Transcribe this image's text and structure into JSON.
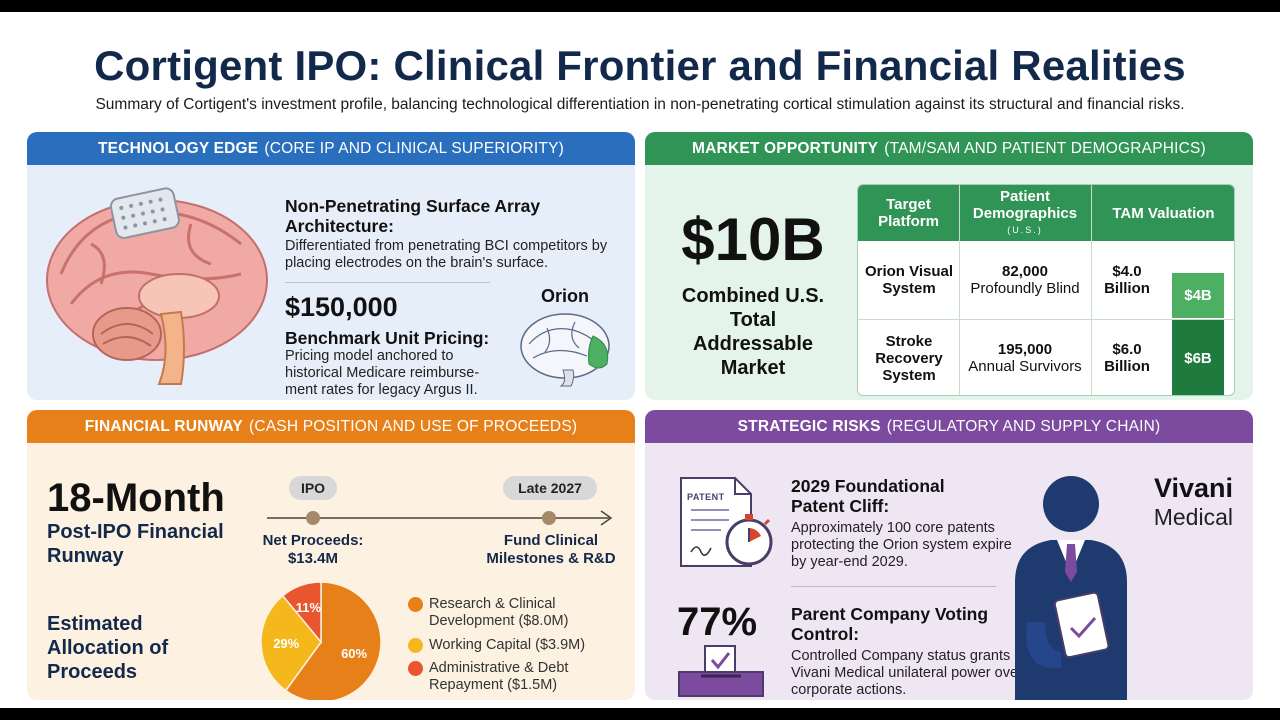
{
  "title": "Cortigent IPO: Clinical Frontier and Financial Realities",
  "subtitle": "Summary of Cortigent's investment profile, balancing technological differentiation in non-penetrating cortical stimulation against its structural and financial risks.",
  "colors": {
    "navy": "#13294b",
    "blue": "#2a6fbe",
    "green": "#2f9456",
    "orange": "#e8801a",
    "purple": "#7c4a9e"
  },
  "tech": {
    "heading_bold": "TECHNOLOGY EDGE",
    "heading_rest": "(CORE IP AND CLINICAL SUPERIORITY)",
    "array_title": "Non-Penetrating Surface Array Architecture:",
    "array_body": "Differentiated from penetrating BCI competitors by placing electrodes on the brain's surface.",
    "price": "$150,000",
    "price_title": "Benchmark Unit Pricing:",
    "price_body": "Pricing model anchored to historical Medicare reimburse-ment rates for legacy Argus II.",
    "orion_label": "Orion"
  },
  "market": {
    "heading_bold": "MARKET OPPORTUNITY",
    "heading_rest": "(TAM/SAM AND PATIENT DEMOGRAPHICS)",
    "big_value": "$10B",
    "big_label": "Combined U.S. Total Addressable Market",
    "table": {
      "headers": [
        "Target Platform",
        "Patient Demographics",
        "TAM Valuation"
      ],
      "demographics_sub": "(U.S.)",
      "rows": [
        {
          "platform": "Orion Visual System",
          "count": "82,000",
          "group": "Profoundly Blind",
          "tam": "$4.0 Billion",
          "bar": "$4B",
          "tam_value": 4.0
        },
        {
          "platform": "Stroke Recovery System",
          "count": "195,000",
          "group": "Annual Survivors",
          "tam": "$6.0 Billion",
          "bar": "$6B",
          "tam_value": 6.0
        }
      ]
    }
  },
  "fin": {
    "heading_bold": "FINANCIAL RUNWAY",
    "heading_rest": "(CASH POSITION AND USE OF PROCEEDS)",
    "runway_value": "18-Month",
    "runway_label": "Post-IPO Financial Runway",
    "timeline": {
      "start_pill": "IPO",
      "end_pill": "Late 2027",
      "start_label": "Net Proceeds: $13.4M",
      "end_label": "Fund Clinical Milestones & R&D"
    },
    "allocation_label": "Estimated Allocation of Proceeds",
    "pie": [
      {
        "name": "Research & Clinical Development ($8.0M)",
        "percent": 60,
        "label": "60%",
        "color": "#e8801a"
      },
      {
        "name": "Working Capital ($3.9M)",
        "percent": 29,
        "label": "29%",
        "color": "#f4b81c"
      },
      {
        "name": "Administrative & Debt Repayment ($1.5M)",
        "percent": 11,
        "label": "11%",
        "color": "#e8552e"
      }
    ]
  },
  "risk": {
    "heading_bold": "STRATEGIC RISKS",
    "heading_rest": "(REGULATORY AND SUPPLY CHAIN)",
    "patent_doc_label": "PATENT",
    "patent_title": "2029 Foundational Patent Cliff:",
    "patent_body": "Approximately 100 core patents protecting the Orion system expire by year-end 2029.",
    "vote_value": "77%",
    "vote_title": "Parent Company Voting Control:",
    "vote_body": "Controlled Company status grants Vivani Medical unilateral power over corporate actions.",
    "brand_line1": "Vivani",
    "brand_line2": "Medical"
  }
}
